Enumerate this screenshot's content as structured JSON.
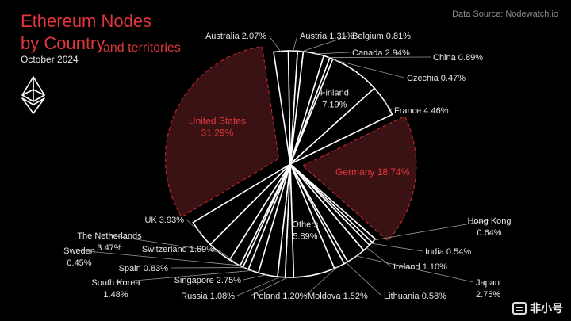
{
  "header": {
    "title_line1": "Ethereum Nodes",
    "title_line2": "by Country",
    "title_suffix": "and territories",
    "date": "October 2024",
    "source": "Data Source: Nodewatch.io"
  },
  "watermark": {
    "text": "非小号",
    "icon": "brand-box-icon"
  },
  "logo": {
    "icon": "ethereum-diamond-icon",
    "color": "#ffffff"
  },
  "colors": {
    "background": "#000000",
    "title": "#e2363b",
    "highlight_fill": "#3a1214",
    "highlight_stroke": "#b2272c",
    "highlight_text": "#e2363b",
    "slice_stroke": "#ffffff",
    "label_text": "#e6e6e6",
    "leader": "#9a9a9a"
  },
  "chart_data": {
    "type": "pie",
    "title": "Ethereum Nodes by Country and territories",
    "subtitle": "October 2024",
    "unit": "%",
    "slices": [
      {
        "label": "Austria",
        "value": 1.31,
        "display": "Austria 1.31%"
      },
      {
        "label": "Belgium",
        "value": 0.81,
        "display": "Belgium 0.81%"
      },
      {
        "label": "Canada",
        "value": 2.94,
        "display": "Canada 2.94%"
      },
      {
        "label": "China",
        "value": 0.89,
        "display": "China 0.89%"
      },
      {
        "label": "Czechia",
        "value": 0.47,
        "display": "Czechia 0.47%"
      },
      {
        "label": "Finland",
        "value": 7.19,
        "display": "Finland\n7.19%"
      },
      {
        "label": "France",
        "value": 4.46,
        "display": "France 4.46%"
      },
      {
        "label": "Germany",
        "value": 18.74,
        "display": "Germany 18.74%",
        "highlight": true
      },
      {
        "label": "Hong Kong",
        "value": 0.64,
        "display": "Hong Kong\n0.64%"
      },
      {
        "label": "India",
        "value": 0.54,
        "display": "India 0.54%"
      },
      {
        "label": "Ireland",
        "value": 1.1,
        "display": "Ireland 1.10%"
      },
      {
        "label": "Japan",
        "value": 2.75,
        "display": "Japan\n2.75%"
      },
      {
        "label": "Lithuania",
        "value": 0.58,
        "display": "Lithuania 0.58%"
      },
      {
        "label": "Moldova",
        "value": 1.52,
        "display": "Moldova 1.52%"
      },
      {
        "label": "Others",
        "value": 5.89,
        "display": "Others\n5.89%"
      },
      {
        "label": "Poland",
        "value": 1.2,
        "display": "Poland 1.20%"
      },
      {
        "label": "Russia",
        "value": 1.08,
        "display": "Russia 1.08%"
      },
      {
        "label": "Singapore",
        "value": 2.75,
        "display": "Singapore 2.75%"
      },
      {
        "label": "South Korea",
        "value": 1.48,
        "display": "South Korea\n1.48%"
      },
      {
        "label": "Spain",
        "value": 0.83,
        "display": "Spain 0.83%"
      },
      {
        "label": "Sweden",
        "value": 0.45,
        "display": "Sweden\n0.45%"
      },
      {
        "label": "Switzerland",
        "value": 1.69,
        "display": "Switzerland 1.69%"
      },
      {
        "label": "The Netherlands",
        "value": 3.47,
        "display": "The Netherlands\n3.47%"
      },
      {
        "label": "UK",
        "value": 3.93,
        "display": "UK 3.93%"
      },
      {
        "label": "United States",
        "value": 31.29,
        "display": "United States\n31.29%",
        "highlight": true
      },
      {
        "label": "Australia",
        "value": 2.07,
        "display": "Australia 2.07%"
      }
    ]
  }
}
